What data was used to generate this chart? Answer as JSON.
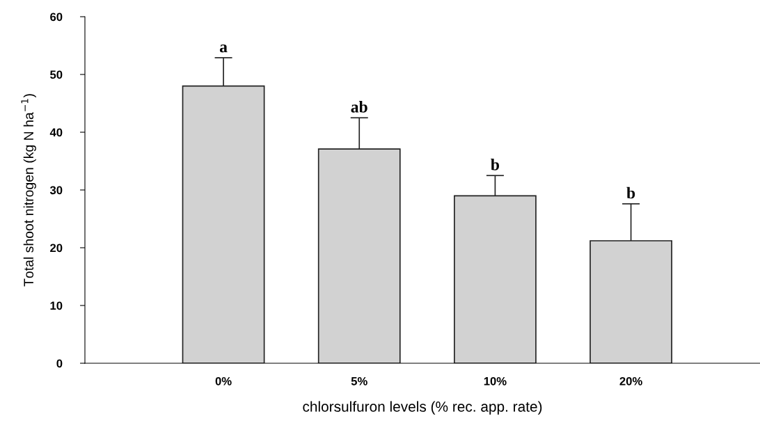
{
  "chart_data": {
    "type": "bar",
    "xlabel": "chlorsulfuron levels (% rec. app. rate)",
    "ylabel": "Total shoot nitrogen (kg N ha$^{−1}$)",
    "categories": [
      "0%",
      "5%",
      "10%",
      "20%"
    ],
    "values": [
      48.0,
      37.1,
      29.0,
      21.2
    ],
    "errors": [
      4.9,
      5.4,
      3.5,
      6.4
    ],
    "color": "#d2d2d2",
    "ylim": [
      0,
      60
    ],
    "yticks": [
      0,
      10,
      20,
      30,
      40,
      50,
      60
    ],
    "grid": false,
    "annotations": [
      "a",
      "ab",
      "b",
      "b"
    ]
  }
}
